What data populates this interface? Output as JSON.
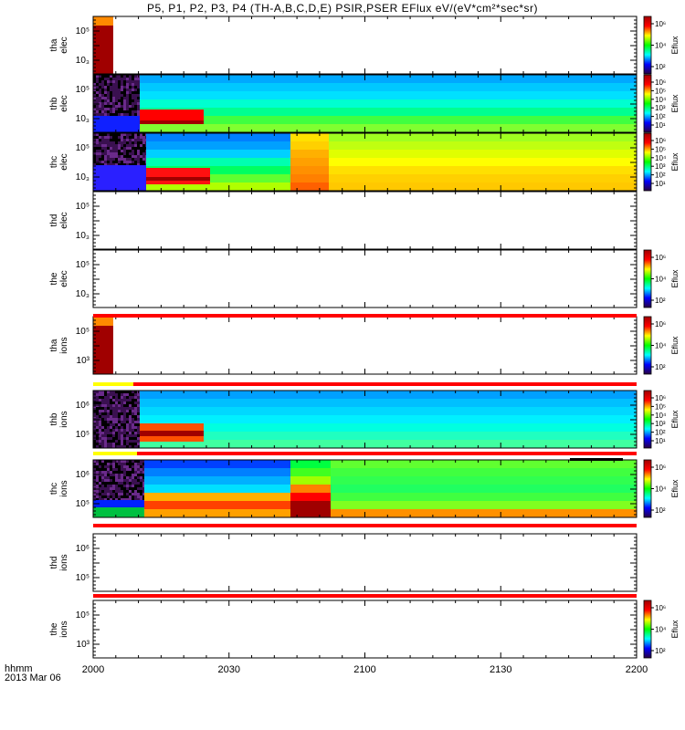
{
  "title": "P5, P1, P2, P3, P4 (TH-A,B,C,D,E) PSIR,PSER EFlux eV/(eV*cm²*sec*sr)",
  "x_header": [
    "hhmm",
    "2013 Mar 06"
  ],
  "x_ticks": [
    "2000",
    "2030",
    "2100",
    "2130",
    "2200"
  ],
  "colorbar_label": "Eflux",
  "panels": [
    {
      "id": "tha-elec",
      "label": [
        "tha",
        "elec"
      ],
      "yticks": [
        "10⁵",
        "10₃"
      ],
      "colorbar": [
        "10⁶",
        "10⁴",
        "10²"
      ],
      "has_colorbar": true
    },
    {
      "id": "thb-elec",
      "label": [
        "thb",
        "elec"
      ],
      "yticks": [
        "10⁵",
        "10₃"
      ],
      "colorbar": [
        "10⁶",
        "10⁵",
        "10⁴",
        "10³",
        "10²",
        "10¹"
      ],
      "has_colorbar": true
    },
    {
      "id": "thc-elec",
      "label": [
        "thc",
        "elec"
      ],
      "yticks": [
        "10⁵",
        "10₃"
      ],
      "colorbar": [
        "10⁶",
        "10⁵",
        "10⁴",
        "10³",
        "10²",
        "10¹"
      ],
      "has_colorbar": true
    },
    {
      "id": "thd-elec",
      "label": [
        "thd",
        "elec"
      ],
      "yticks": [
        "10⁵",
        "10₃"
      ],
      "colorbar": [],
      "has_colorbar": false
    },
    {
      "id": "the-elec",
      "label": [
        "the",
        "elec"
      ],
      "yticks": [
        "10⁵",
        "10₃"
      ],
      "colorbar": [
        "10⁶",
        "10⁴",
        "10²"
      ],
      "has_colorbar": true
    },
    {
      "id": "tha-ions",
      "label": [
        "tha",
        "ions"
      ],
      "yticks": [
        "10⁵",
        "10³"
      ],
      "colorbar": [
        "10⁶",
        "10⁴",
        "10²"
      ],
      "has_colorbar": true
    },
    {
      "id": "thb-ions",
      "label": [
        "thb",
        "ions"
      ],
      "yticks": [
        "10⁶",
        "10⁵"
      ],
      "colorbar": [
        "10⁶",
        "10⁵",
        "10⁴",
        "10³",
        "10²",
        "10¹"
      ],
      "has_colorbar": true
    },
    {
      "id": "thc-ions",
      "label": [
        "thc",
        "ions"
      ],
      "yticks": [
        "10⁶",
        "10⁵"
      ],
      "colorbar": [
        "10⁶",
        "10⁴",
        "10²"
      ],
      "has_colorbar": true
    },
    {
      "id": "thd-ions",
      "label": [
        "thd",
        "ions"
      ],
      "yticks": [
        "10⁶",
        "10⁵"
      ],
      "colorbar": [],
      "has_colorbar": false
    },
    {
      "id": "the-ions",
      "label": [
        "the",
        "ions"
      ],
      "yticks": [
        "10⁵",
        "10³"
      ],
      "colorbar": [
        "10⁶",
        "10⁴",
        "10²"
      ],
      "has_colorbar": true
    }
  ],
  "chart_data": {
    "type": "heatmap",
    "title": "P5, P1, P2, P3, P4 (TH-A,B,C,D,E) PSIR,PSER EFlux eV/(eV*cm²*sec*sr)",
    "x_axis": {
      "label": "hhmm",
      "date": "2013 Mar 06",
      "range": [
        "2000",
        "2200"
      ],
      "ticks": [
        "2000",
        "2030",
        "2100",
        "2130",
        "2200"
      ]
    },
    "y_scale": "log",
    "color_scale": "log",
    "colorbar_label": "Eflux",
    "colormap": [
      "#2a0040",
      "#0000ff",
      "#00ffff",
      "#00ff00",
      "#ffff00",
      "#ff0000",
      "#a00000"
    ],
    "panels": [
      {
        "name": "tha elec",
        "segments": [
          {
            "t0": "2000",
            "t1": "2004",
            "pattern": "dark-red"
          }
        ]
      },
      {
        "name": "thb elec",
        "segments": [
          {
            "t0": "2000",
            "t1": "2011",
            "pattern": "noise"
          },
          {
            "t0": "2011",
            "t1": "2200",
            "pattern": "blue-green"
          }
        ]
      },
      {
        "name": "thc elec",
        "segments": [
          {
            "t0": "2000",
            "t1": "2011",
            "pattern": "noise"
          },
          {
            "t0": "2011",
            "t1": "2045",
            "pattern": "blue-green-red"
          },
          {
            "t0": "2045",
            "t1": "2200",
            "pattern": "green-yellow"
          }
        ]
      },
      {
        "name": "thd elec",
        "segments": []
      },
      {
        "name": "the elec",
        "segments": []
      },
      {
        "name": "tha ions",
        "segments": [
          {
            "t0": "2000",
            "t1": "2004",
            "pattern": "dark-red"
          }
        ]
      },
      {
        "name": "thb ions",
        "segments": [
          {
            "t0": "2000",
            "t1": "2011",
            "pattern": "noise"
          },
          {
            "t0": "2011",
            "t1": "2200",
            "pattern": "cyan"
          }
        ]
      },
      {
        "name": "thc ions",
        "segments": [
          {
            "t0": "2000",
            "t1": "2011",
            "pattern": "noise"
          },
          {
            "t0": "2011",
            "t1": "2045",
            "pattern": "blue-orange"
          },
          {
            "t0": "2045",
            "t1": "2200",
            "pattern": "green"
          }
        ]
      },
      {
        "name": "thd ions",
        "segments": []
      },
      {
        "name": "the ions",
        "segments": []
      }
    ]
  }
}
